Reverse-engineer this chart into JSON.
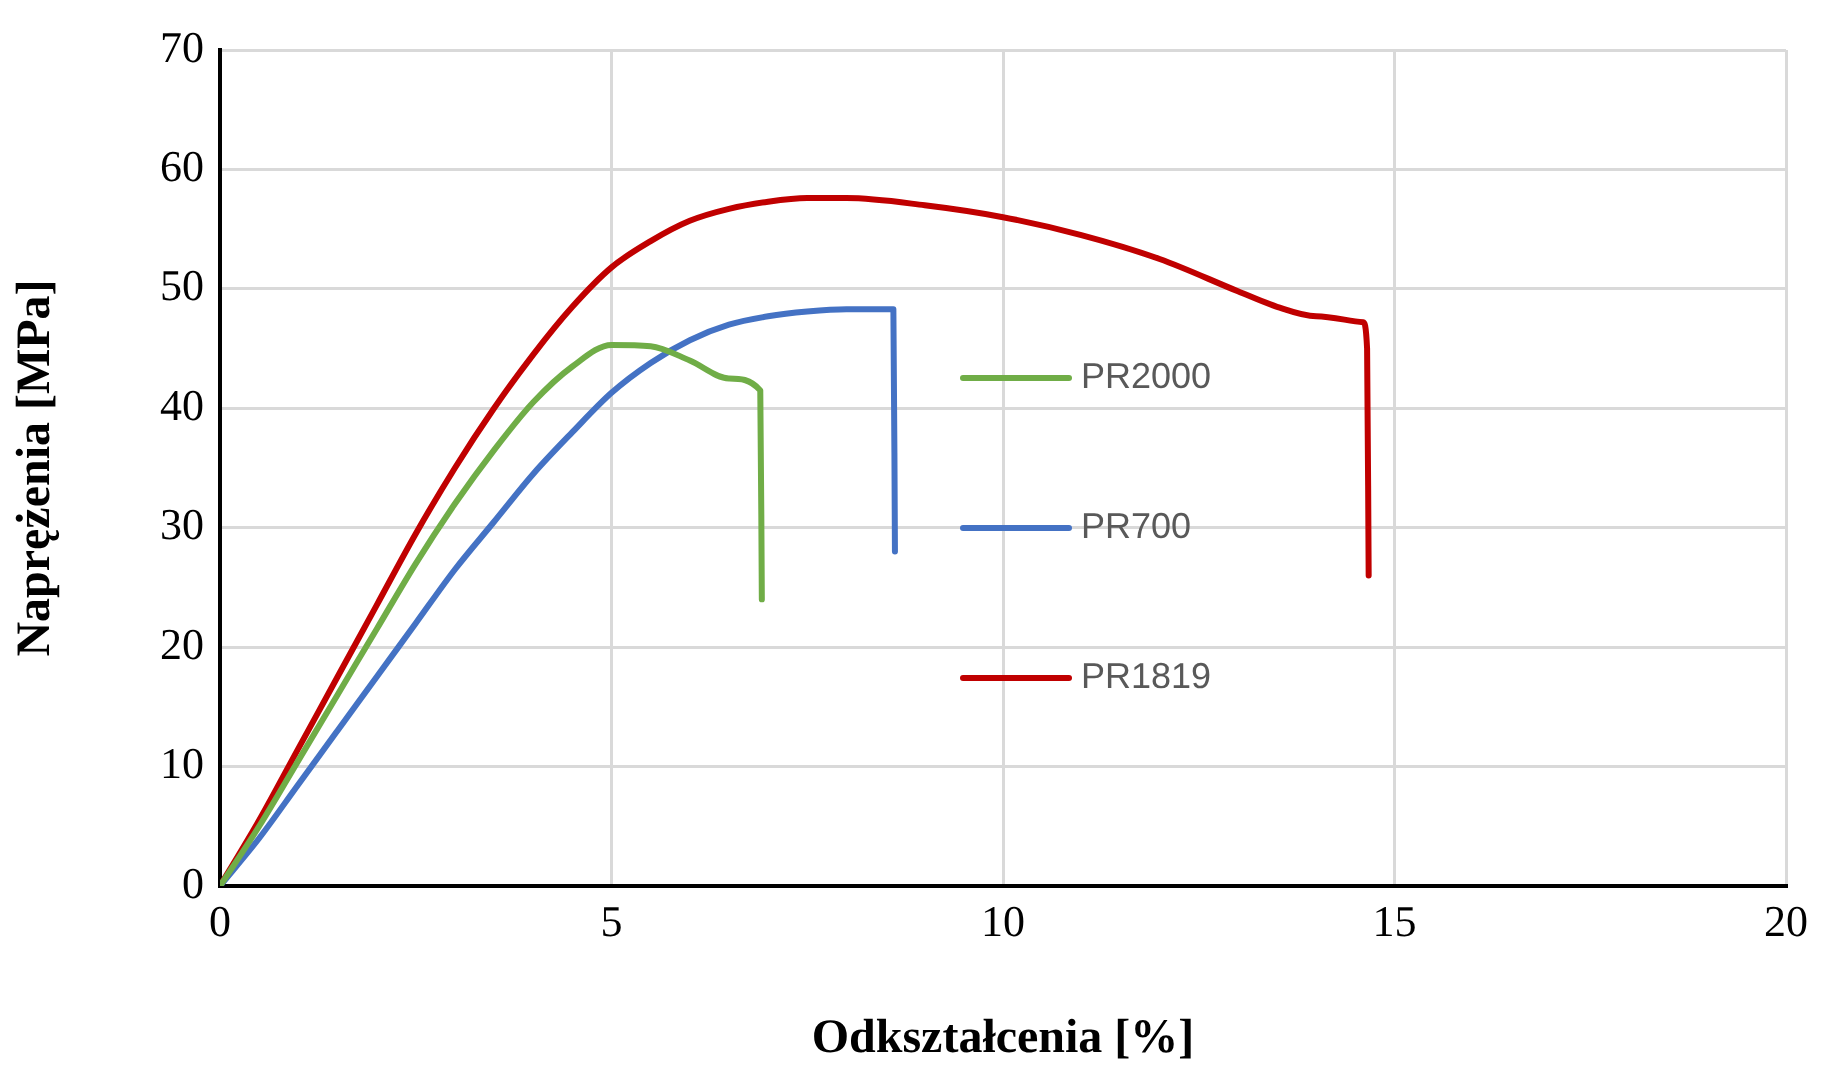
{
  "chart_data": {
    "type": "line",
    "xlabel": "Odkształcenia [%]",
    "ylabel": "Naprężenia [MPa]",
    "xlim": [
      0,
      20
    ],
    "xticks": [
      0,
      5,
      10,
      15,
      20
    ],
    "ylim": [
      0,
      70
    ],
    "yticks": [
      0,
      10,
      20,
      30,
      40,
      50,
      60,
      70
    ],
    "grid": true,
    "legend": "center",
    "marker": "none",
    "line_style": "solid",
    "series": [
      {
        "name": "PR2000",
        "color": "#70ad47",
        "x": [
          0,
          0.5,
          1,
          1.5,
          2,
          2.5,
          3,
          3.5,
          4,
          4.5,
          5,
          5.5,
          6,
          6.5,
          6.9,
          6.92
        ],
        "values": [
          0,
          5,
          10.5,
          16,
          21.5,
          27,
          32,
          36.5,
          40.5,
          43.5,
          45.3,
          45.2,
          44,
          42.5,
          41.5,
          24
        ]
      },
      {
        "name": "PR700",
        "color": "#4472c4",
        "x": [
          0,
          0.5,
          1,
          1.5,
          2,
          2.5,
          3,
          3.5,
          4,
          4.5,
          5,
          5.5,
          6,
          6.5,
          7,
          7.5,
          8,
          8.6,
          8.62
        ],
        "values": [
          0,
          4,
          8.5,
          13,
          17.5,
          22,
          26.5,
          30.5,
          34.5,
          38,
          41.3,
          43.8,
          45.7,
          47,
          47.7,
          48.1,
          48.3,
          48.3,
          28
        ]
      },
      {
        "name": "PR1819",
        "color": "#c00000",
        "x": [
          0,
          0.5,
          1,
          1.5,
          2,
          2.5,
          3,
          3.5,
          4,
          4.5,
          5,
          5.5,
          6,
          6.5,
          7,
          7.5,
          8,
          9,
          10,
          11,
          12,
          13,
          13.5,
          14,
          14.6,
          14.65,
          14.67
        ],
        "values": [
          0,
          5.5,
          11.5,
          17.5,
          23.5,
          29.5,
          35,
          40,
          44.5,
          48.5,
          51.8,
          54,
          55.7,
          56.7,
          57.3,
          57.6,
          57.6,
          57,
          56,
          54.5,
          52.5,
          49.8,
          48.5,
          47.7,
          47.2,
          45,
          26
        ]
      }
    ]
  }
}
